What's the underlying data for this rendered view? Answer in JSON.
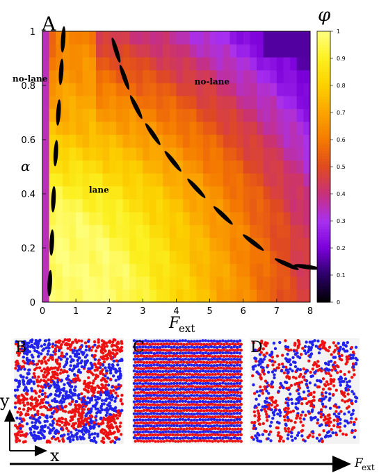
{
  "chart_data": [
    {
      "type": "heatmap",
      "panel": "A",
      "xlabel": "F_ext",
      "ylabel": "α",
      "colorbar_label": "φ",
      "x_range": [
        0,
        8
      ],
      "y_range": [
        0,
        1
      ],
      "x_ticks": [
        "0",
        "1",
        "2",
        "3",
        "4",
        "5",
        "6",
        "7",
        "8"
      ],
      "y_ticks": [
        "0",
        "0.2",
        "0.4",
        "0.6",
        "0.8",
        "1"
      ],
      "colorbar_range": [
        0,
        1
      ],
      "colorbar_ticks": [
        "0",
        "0.1",
        "0.2",
        "0.3",
        "0.4",
        "0.5",
        "0.6",
        "0.7",
        "0.8",
        "0.9",
        "1"
      ],
      "colormap": [
        "#000000",
        "#2a0066",
        "#7a00d9",
        "#a830f0",
        "#c8307a",
        "#e04a20",
        "#f57a00",
        "#fba400",
        "#fcd000",
        "#fcf020",
        "#ffff80"
      ],
      "annotations": [
        {
          "text": "no-lane",
          "x": 0.1,
          "y": 0.86
        },
        {
          "text": "no-lane",
          "x": 5.0,
          "y": 0.85
        },
        {
          "text": "lane",
          "x": 1.85,
          "y": 0.45
        }
      ],
      "left_boundary": [
        [
          0.22,
          0.07
        ],
        [
          0.28,
          0.22
        ],
        [
          0.33,
          0.38
        ],
        [
          0.4,
          0.55
        ],
        [
          0.48,
          0.7
        ],
        [
          0.56,
          0.85
        ],
        [
          0.62,
          0.97
        ]
      ],
      "right_boundary": [
        [
          2.2,
          0.93
        ],
        [
          2.45,
          0.83
        ],
        [
          2.8,
          0.72
        ],
        [
          3.3,
          0.62
        ],
        [
          3.9,
          0.52
        ],
        [
          4.6,
          0.42
        ],
        [
          5.4,
          0.32
        ],
        [
          6.3,
          0.22
        ],
        [
          7.3,
          0.14
        ],
        [
          7.9,
          0.13
        ]
      ]
    }
  ],
  "panel_labels": {
    "A": "A",
    "B": "B",
    "C": "C",
    "D": "D"
  },
  "axis_arrows": {
    "x_label": "x",
    "y_label": "y",
    "bottom_label": "F_ext"
  },
  "colors": {
    "red": "#ee1111",
    "blue": "#2222ee"
  }
}
